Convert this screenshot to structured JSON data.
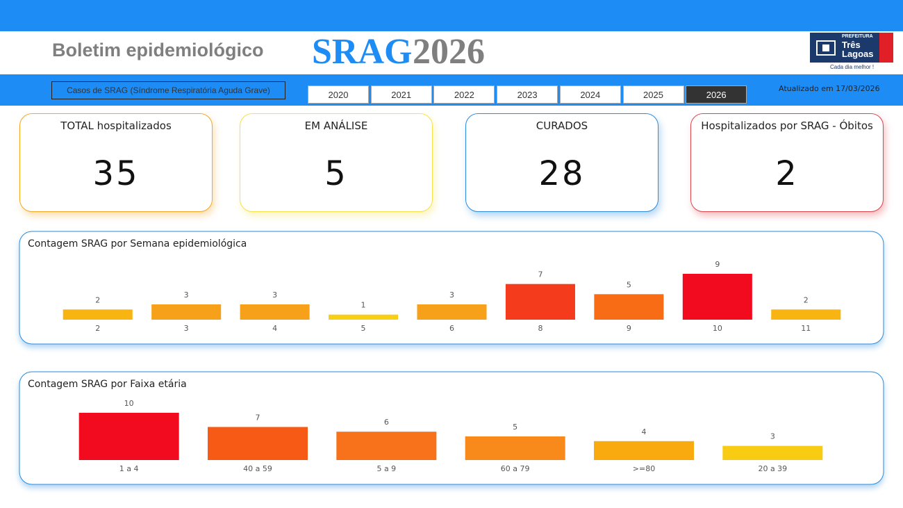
{
  "header": {
    "title": "Boletim epidemiológico",
    "title_main": "SRAG",
    "title_year": "2026",
    "logo": {
      "top": "PREFEITURA",
      "line1": "Três",
      "line2": "Lagoas",
      "slogan": "Cada dia melhor !"
    }
  },
  "filter_bar": {
    "caption": "Casos de SRAG (Síndrome Respiratória Aguda Grave)",
    "years": [
      "2020",
      "2021",
      "2022",
      "2023",
      "2024",
      "2025",
      "2026"
    ],
    "selected_year": "2026",
    "updated": "Atualizado em 17/03/2026"
  },
  "kpis": [
    {
      "label": "TOTAL hospitalizados",
      "value": 35,
      "color": "#f5a623"
    },
    {
      "label": "EM ANÁLISE",
      "value": 5,
      "color": "#f7e14a"
    },
    {
      "label": "CURADOS",
      "value": 28,
      "color": "#2a8be0"
    },
    {
      "label": "Hospitalizados por SRAG - Óbitos",
      "value": 2,
      "color": "#e0434c"
    }
  ],
  "chart_data": [
    {
      "type": "bar",
      "title": "Contagem SRAG por Semana epidemiológica",
      "categories": [
        "2",
        "3",
        "4",
        "5",
        "6",
        "8",
        "9",
        "10",
        "11"
      ],
      "values": [
        2,
        3,
        3,
        1,
        3,
        7,
        5,
        9,
        2
      ],
      "colors": [
        "#f8b410",
        "#f7a11a",
        "#f7a11a",
        "#f8cf14",
        "#f7a11a",
        "#f43b1c",
        "#f76c14",
        "#f20a1e",
        "#f8b410"
      ]
    },
    {
      "type": "bar",
      "title": "Contagem SRAG por Faixa etária",
      "categories": [
        "1 a 4",
        "40 a 59",
        "5 a 9",
        "60 a 79",
        ">=80",
        "20 a 39"
      ],
      "values": [
        10,
        7,
        6,
        5,
        4,
        3
      ],
      "colors": [
        "#f20a1e",
        "#f75a14",
        "#f7721a",
        "#f78a1a",
        "#f9aa0f",
        "#f9cc14"
      ]
    }
  ]
}
